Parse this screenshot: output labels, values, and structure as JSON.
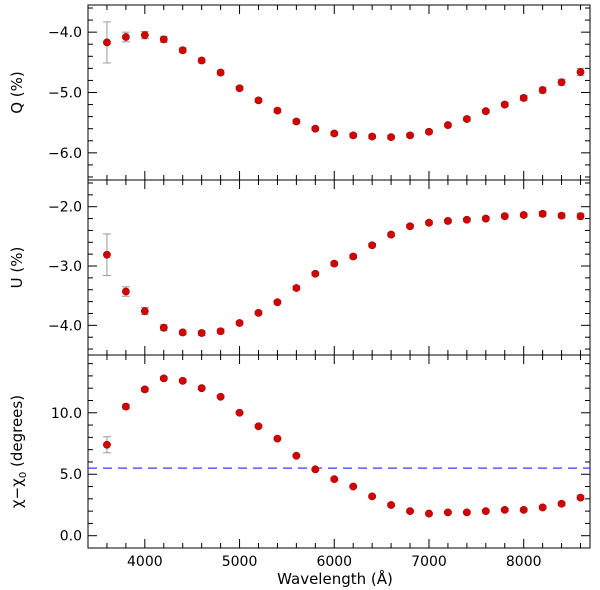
{
  "chart_data": {
    "type": "scatter",
    "xlabel": "Wavelength (Å)",
    "xlim": [
      3400,
      8700
    ],
    "xticks_labeled": [
      "4000",
      "5000",
      "6000",
      "7000",
      "8000"
    ],
    "colors": {
      "points": "#d40000",
      "errorbars": "#999999",
      "reference_line": "#3a3aff"
    },
    "panels": [
      {
        "id": "Q",
        "ylabel": "Q (%)",
        "ylim": [
          -6.45,
          -3.55
        ],
        "inverted_y": true,
        "yticks_labeled": [
          "−4.0",
          "−5.0",
          "−6.0"
        ],
        "yticks_labeled_values": [
          -4.0,
          -5.0,
          -6.0
        ],
        "x": [
          3600,
          3800,
          4000,
          4200,
          4400,
          4600,
          4800,
          5000,
          5200,
          5400,
          5600,
          5800,
          6000,
          6200,
          6400,
          6600,
          6800,
          7000,
          7200,
          7400,
          7600,
          7800,
          8000,
          8200,
          8400,
          8600
        ],
        "y": [
          -4.17,
          -4.08,
          -4.05,
          -4.12,
          -4.3,
          -4.47,
          -4.67,
          -4.93,
          -5.13,
          -5.3,
          -5.48,
          -5.6,
          -5.68,
          -5.71,
          -5.73,
          -5.74,
          -5.71,
          -5.65,
          -5.54,
          -5.44,
          -5.31,
          -5.2,
          -5.09,
          -4.96,
          -4.83,
          -4.66
        ],
        "yerr": [
          0.34,
          0.08,
          0.06,
          0.05,
          0.04,
          0.04,
          0.04,
          0.03,
          0.03,
          0.03,
          0.03,
          0.03,
          0.03,
          0.03,
          0.03,
          0.03,
          0.03,
          0.03,
          0.03,
          0.03,
          0.03,
          0.03,
          0.04,
          0.05,
          0.05,
          0.06
        ]
      },
      {
        "id": "U",
        "ylabel": "U (%)",
        "ylim": [
          -4.5,
          -1.55
        ],
        "inverted_y": true,
        "yticks_labeled": [
          "−2.0",
          "−3.0",
          "−4.0"
        ],
        "yticks_labeled_values": [
          -2.0,
          -3.0,
          -4.0
        ],
        "x": [
          3600,
          3800,
          4000,
          4200,
          4400,
          4600,
          4800,
          5000,
          5200,
          5400,
          5600,
          5800,
          6000,
          6200,
          6400,
          6600,
          6800,
          7000,
          7200,
          7400,
          7600,
          7800,
          8000,
          8200,
          8400,
          8600
        ],
        "y": [
          -2.81,
          -3.43,
          -3.76,
          -4.04,
          -4.12,
          -4.13,
          -4.1,
          -3.96,
          -3.79,
          -3.61,
          -3.37,
          -3.13,
          -2.96,
          -2.84,
          -2.65,
          -2.47,
          -2.33,
          -2.27,
          -2.24,
          -2.22,
          -2.2,
          -2.16,
          -2.14,
          -2.12,
          -2.15,
          -2.16
        ],
        "yerr": [
          0.35,
          0.08,
          0.06,
          0.05,
          0.04,
          0.04,
          0.04,
          0.03,
          0.03,
          0.03,
          0.03,
          0.03,
          0.03,
          0.03,
          0.03,
          0.03,
          0.03,
          0.03,
          0.03,
          0.03,
          0.03,
          0.03,
          0.03,
          0.04,
          0.04,
          0.05
        ]
      },
      {
        "id": "chi",
        "ylabel": "χ−χ",
        "ylabel_sub": "0",
        "ylabel_tail": " (degrees)",
        "ylim": [
          -1.0,
          14.7
        ],
        "inverted_y": false,
        "yticks_labeled": [
          "0.0",
          "5.0",
          "10.0"
        ],
        "yticks_labeled_values": [
          0.0,
          5.0,
          10.0
        ],
        "reference_line": 5.5,
        "x": [
          3600,
          3800,
          4000,
          4200,
          4400,
          4600,
          4800,
          5000,
          5200,
          5400,
          5600,
          5800,
          6000,
          6200,
          6400,
          6600,
          6800,
          7000,
          7200,
          7400,
          7600,
          7800,
          8000,
          8200,
          8400,
          8600
        ],
        "y": [
          7.4,
          10.5,
          11.9,
          12.8,
          12.6,
          12.0,
          11.3,
          10.0,
          8.9,
          7.9,
          6.5,
          5.4,
          4.6,
          4.0,
          3.2,
          2.5,
          2.0,
          1.8,
          1.9,
          1.9,
          2.0,
          2.1,
          2.1,
          2.3,
          2.6,
          3.1
        ],
        "yerr": [
          0.65,
          0.2,
          0.15,
          0.12,
          0.12,
          0.1,
          0.1,
          0.1,
          0.1,
          0.1,
          0.1,
          0.1,
          0.1,
          0.1,
          0.1,
          0.1,
          0.1,
          0.1,
          0.1,
          0.1,
          0.1,
          0.1,
          0.1,
          0.12,
          0.15,
          0.15
        ]
      }
    ]
  }
}
